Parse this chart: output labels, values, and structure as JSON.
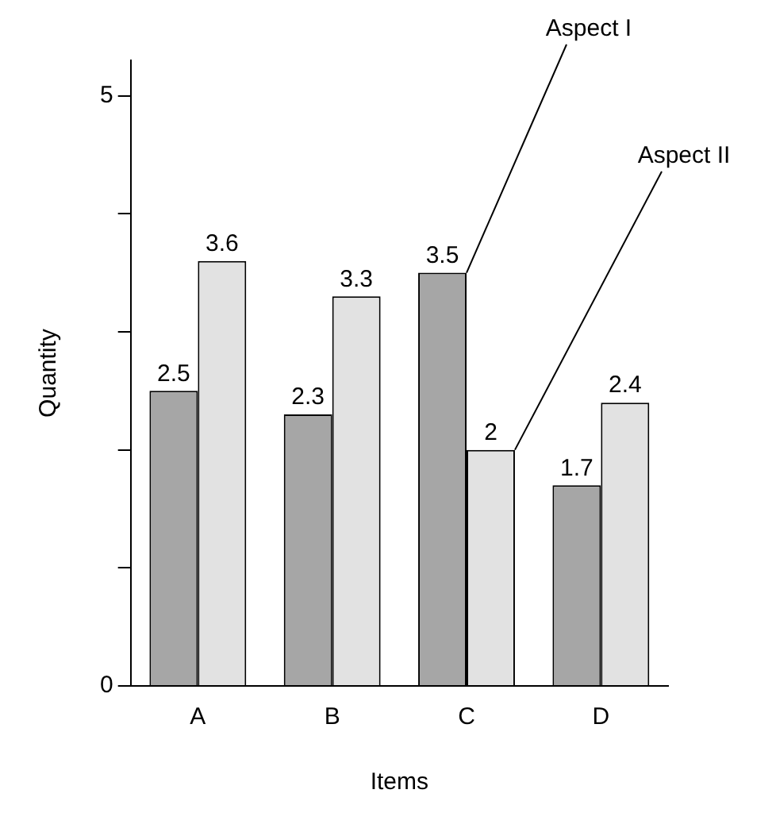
{
  "chart_data": {
    "type": "bar",
    "xlabel": "Items",
    "ylabel": "Quantity",
    "categories": [
      "A",
      "B",
      "C",
      "D"
    ],
    "series": [
      {
        "name": "Aspect I",
        "color": "#a6a6a6",
        "values": [
          2.5,
          2.3,
          3.5,
          1.7
        ]
      },
      {
        "name": "Aspect II",
        "color": "#e2e2e2",
        "values": [
          3.6,
          3.3,
          2,
          2.4
        ]
      }
    ],
    "ylim": [
      0,
      5.3
    ],
    "yticks": [
      0,
      {
        "value": 1,
        "label": null
      },
      {
        "value": 2,
        "label": null
      },
      {
        "value": 3,
        "label": null
      },
      {
        "value": 4,
        "label": null
      },
      5
    ],
    "data_labels": true,
    "grid": false,
    "legend": false
  }
}
